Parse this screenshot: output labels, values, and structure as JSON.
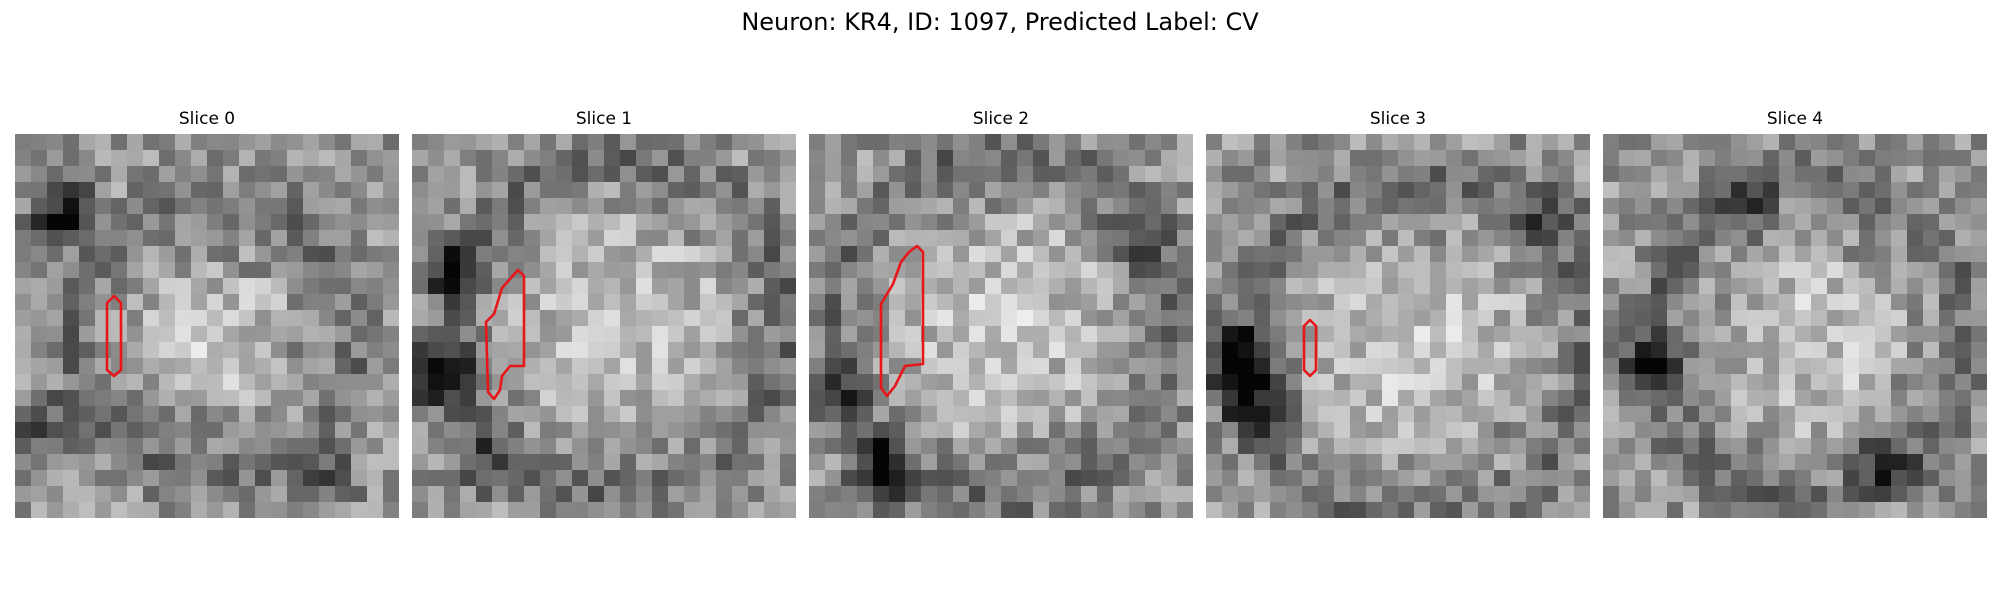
{
  "figure": {
    "title": "Neuron: KR4, ID: 1097, Predicted Label: CV"
  },
  "panels": [
    {
      "title": "Slice 0"
    },
    {
      "title": "Slice 1"
    },
    {
      "title": "Slice 2"
    },
    {
      "title": "Slice 3"
    },
    {
      "title": "Slice 4"
    }
  ],
  "colors": {
    "contour": "#e8161b",
    "colormap": "gray"
  }
}
